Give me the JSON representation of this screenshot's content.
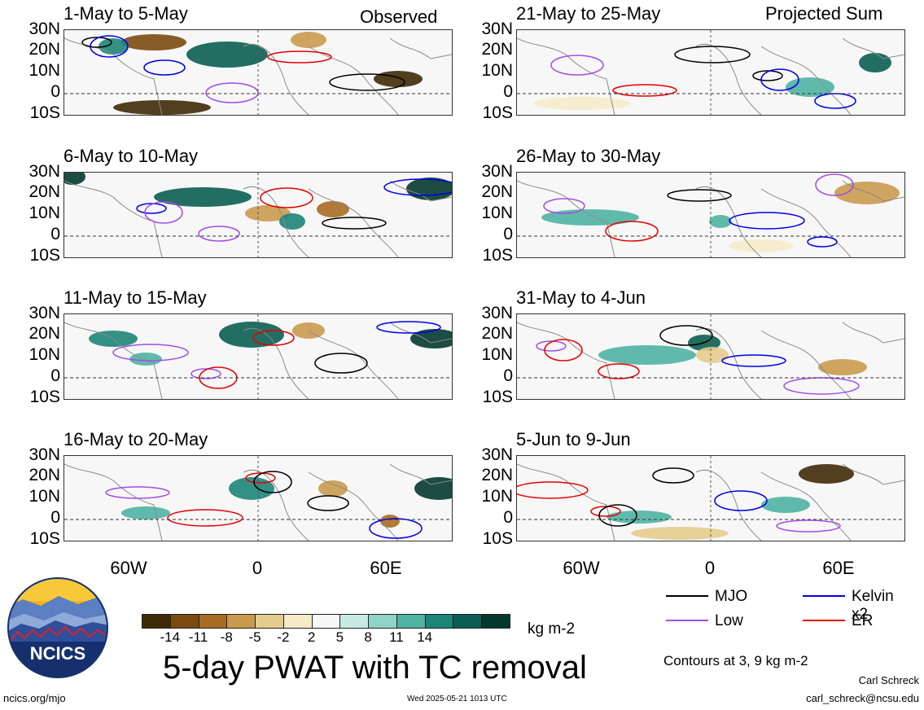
{
  "header": {
    "observed_label": "Observed",
    "projected_label": "Projected Sum"
  },
  "panels": {
    "left": [
      {
        "title": "1-May to 5-May"
      },
      {
        "title": "6-May to 10-May"
      },
      {
        "title": "11-May to 15-May"
      },
      {
        "title": "16-May to 20-May"
      }
    ],
    "right": [
      {
        "title": "21-May to 25-May"
      },
      {
        "title": "26-May to 30-May"
      },
      {
        "title": "31-May to 4-Jun"
      },
      {
        "title": "5-Jun to 9-Jun"
      }
    ]
  },
  "axes": {
    "y_labels": [
      "30N",
      "20N",
      "10N",
      "0",
      "10S"
    ],
    "x_labels": [
      "60W",
      "0",
      "60E"
    ]
  },
  "colorbar": {
    "labels": [
      "-14",
      "-11",
      "-8",
      "-5",
      "-2",
      "2",
      "5",
      "8",
      "11",
      "14"
    ],
    "colors": [
      "#3f2a07",
      "#7a4a0f",
      "#a86b22",
      "#c99a4c",
      "#e4cc8c",
      "#f5ebc9",
      "#f7f7f7",
      "#c7ebe3",
      "#8fd3c6",
      "#4fb3a2",
      "#1c8577",
      "#0b5e52",
      "#03382f"
    ],
    "unit": "kg m-2"
  },
  "legend": {
    "items": [
      {
        "label": "MJO",
        "color": "#000000"
      },
      {
        "label": "Kelvin x2",
        "color": "#0000e6"
      },
      {
        "label": "Low",
        "color": "#a34de8"
      },
      {
        "label": "ER",
        "color": "#e60000"
      }
    ],
    "contours_note": "Contours at 3, 9 kg m-2"
  },
  "footer": {
    "main_title": "5-day PWAT with TC removal",
    "site": "ncics.org/mjo",
    "timestamp": "Wed 2025-05-21 1013 UTC",
    "author": "Carl Schreck",
    "email": "carl_schreck@ncsu.edu",
    "logo_text": "NCICS"
  }
}
